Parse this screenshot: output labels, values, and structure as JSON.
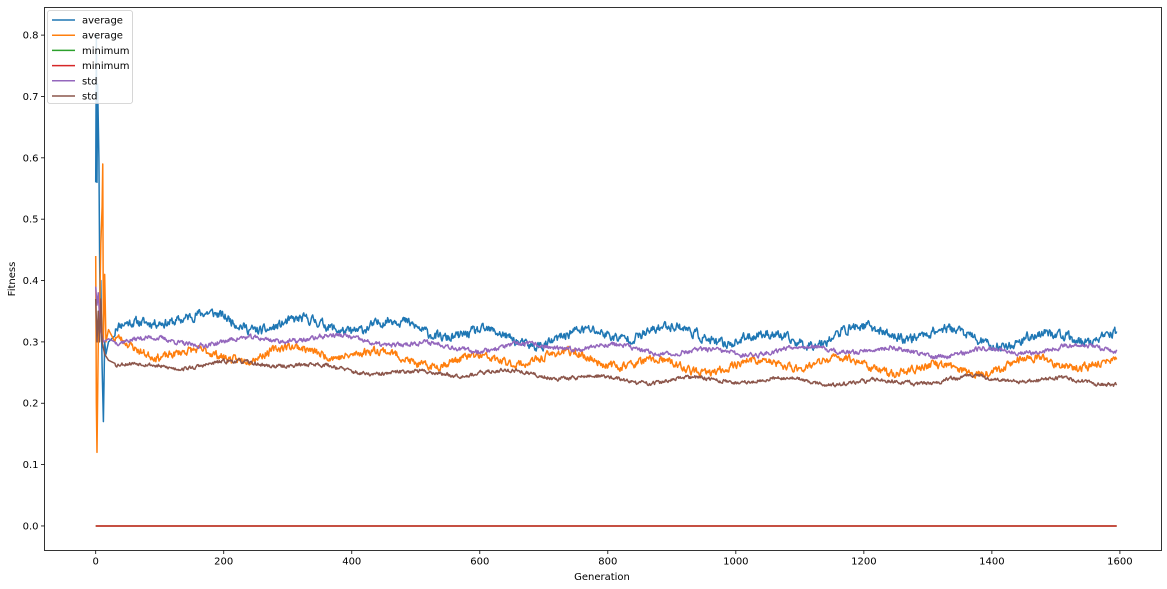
{
  "chart_data": {
    "type": "line",
    "title": "",
    "xlabel": "Generation",
    "ylabel": "Fitness",
    "xlim": [
      -80,
      1665
    ],
    "ylim": [
      -0.04,
      0.845
    ],
    "xticks": [
      0,
      200,
      400,
      600,
      800,
      1000,
      1200,
      1400,
      1600
    ],
    "yticks": [
      0.0,
      0.1,
      0.2,
      0.3,
      0.4,
      0.5,
      0.6,
      0.7,
      0.8
    ],
    "xtick_labels": [
      "0",
      "200",
      "400",
      "600",
      "800",
      "1000",
      "1200",
      "1400",
      "1600"
    ],
    "ytick_labels": [
      "0.0",
      "0.1",
      "0.2",
      "0.3",
      "0.4",
      "0.5",
      "0.6",
      "0.7",
      "0.8"
    ],
    "grid": false,
    "legend_position": "upper-left",
    "generations": 1595,
    "series": [
      {
        "name": "average",
        "color": "#1f77b4",
        "start": [
          [
            0,
            0.56
          ],
          [
            1,
            0.8
          ],
          [
            2,
            0.56
          ],
          [
            3,
            0.72
          ],
          [
            5,
            0.6
          ],
          [
            6,
            0.45
          ],
          [
            7,
            0.33
          ],
          [
            8,
            0.4
          ],
          [
            10,
            0.26
          ],
          [
            12,
            0.17
          ],
          [
            14,
            0.3
          ],
          [
            16,
            0.28
          ],
          [
            20,
            0.3
          ],
          [
            30,
            0.31
          ]
        ],
        "trend": [
          [
            30,
            0.31
          ],
          [
            100,
            0.335
          ],
          [
            300,
            0.335
          ],
          [
            500,
            0.315
          ],
          [
            700,
            0.31
          ],
          [
            1000,
            0.31
          ],
          [
            1300,
            0.31
          ],
          [
            1595,
            0.308
          ]
        ],
        "noise": 0.012,
        "seed": 11
      },
      {
        "name": "average",
        "color": "#ff7f0e",
        "start": [
          [
            0,
            0.44
          ],
          [
            1,
            0.2
          ],
          [
            2,
            0.12
          ],
          [
            4,
            0.3
          ],
          [
            6,
            0.34
          ],
          [
            8,
            0.46
          ],
          [
            10,
            0.52
          ],
          [
            11,
            0.59
          ],
          [
            12,
            0.3
          ],
          [
            14,
            0.41
          ],
          [
            16,
            0.3
          ],
          [
            20,
            0.32
          ],
          [
            30,
            0.3
          ]
        ],
        "trend": [
          [
            30,
            0.3
          ],
          [
            100,
            0.285
          ],
          [
            300,
            0.28
          ],
          [
            500,
            0.275
          ],
          [
            700,
            0.27
          ],
          [
            1000,
            0.262
          ],
          [
            1300,
            0.26
          ],
          [
            1595,
            0.262
          ]
        ],
        "noise": 0.01,
        "seed": 23
      },
      {
        "name": "minimum",
        "color": "#2ca02c",
        "start": [
          [
            0,
            0.0
          ]
        ],
        "trend": [
          [
            0,
            0.0
          ],
          [
            1595,
            0.0
          ]
        ],
        "noise": 0.0,
        "seed": 3
      },
      {
        "name": "minimum",
        "color": "#d62728",
        "start": [
          [
            0,
            0.0
          ]
        ],
        "trend": [
          [
            0,
            0.0
          ],
          [
            1595,
            0.0
          ]
        ],
        "noise": 0.0,
        "seed": 5
      },
      {
        "name": "std",
        "color": "#9467bd",
        "start": [
          [
            0,
            0.39
          ],
          [
            2,
            0.36
          ],
          [
            4,
            0.38
          ],
          [
            6,
            0.34
          ],
          [
            8,
            0.32
          ],
          [
            12,
            0.3
          ],
          [
            20,
            0.305
          ],
          [
            30,
            0.3
          ]
        ],
        "trend": [
          [
            30,
            0.3
          ],
          [
            100,
            0.302
          ],
          [
            300,
            0.305
          ],
          [
            500,
            0.297
          ],
          [
            700,
            0.29
          ],
          [
            1000,
            0.285
          ],
          [
            1300,
            0.285
          ],
          [
            1595,
            0.287
          ]
        ],
        "noise": 0.006,
        "seed": 37
      },
      {
        "name": "std",
        "color": "#8c564b",
        "start": [
          [
            0,
            0.37
          ],
          [
            2,
            0.3
          ],
          [
            4,
            0.35
          ],
          [
            6,
            0.3
          ],
          [
            8,
            0.37
          ],
          [
            10,
            0.3
          ],
          [
            14,
            0.28
          ],
          [
            20,
            0.27
          ],
          [
            30,
            0.265
          ]
        ],
        "trend": [
          [
            30,
            0.265
          ],
          [
            100,
            0.262
          ],
          [
            300,
            0.262
          ],
          [
            500,
            0.25
          ],
          [
            700,
            0.245
          ],
          [
            1000,
            0.235
          ],
          [
            1300,
            0.237
          ],
          [
            1595,
            0.237
          ]
        ],
        "noise": 0.005,
        "seed": 53
      }
    ]
  }
}
